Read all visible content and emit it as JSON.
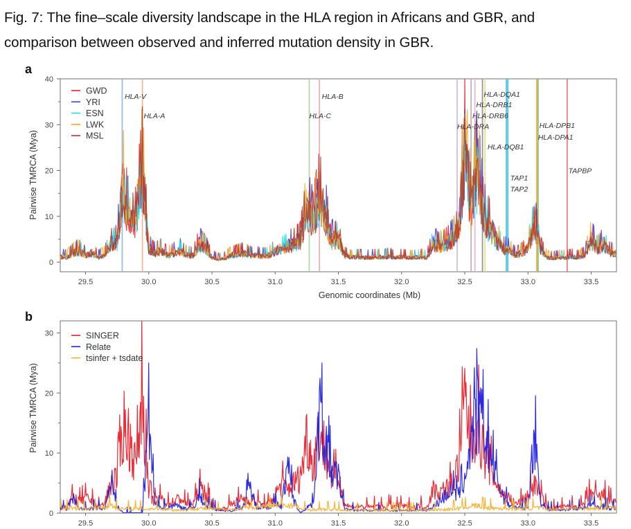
{
  "figure": {
    "title_line1": "Fig. 7: The fine–scale diversity landscape in the HLA region in Africans and GBR, and",
    "title_line2": "comparison between observed and inferred mutation density in GBR."
  },
  "chart_data": [
    {
      "panel": "a",
      "type": "line",
      "xlabel": "Genomic coordinates (Mb)",
      "ylabel": "Pairwise TMRCA (Mya)",
      "xlim": [
        29.3,
        33.7
      ],
      "ylim": [
        -2.1,
        40
      ],
      "xticks": [
        "29.5",
        "30.0",
        "30.5",
        "31.0",
        "31.5",
        "32.0",
        "32.5",
        "33.0",
        "33.5"
      ],
      "yticks": [
        "0",
        "10",
        "20",
        "30",
        "40"
      ],
      "legend_position": "top-left",
      "x_start": 29.3,
      "x_step": 0.05,
      "base_values": [
        1.2,
        1.0,
        2.0,
        2.5,
        1.5,
        2.0,
        1.0,
        1.5,
        4.0,
        4.5,
        17,
        8,
        10,
        21,
        3,
        2,
        2.5,
        1.5,
        2,
        2.5,
        1.5,
        1.5,
        4,
        3,
        1,
        0.6,
        0.8,
        1.5,
        1.8,
        2.0,
        1.5,
        1.5,
        1.3,
        1.5,
        2.5,
        3,
        3.5,
        4,
        5,
        12,
        9,
        15,
        10,
        5,
        5,
        1.5,
        1.0,
        1.2,
        1.0,
        1.0,
        1.2,
        1.0,
        1.3,
        1.0,
        1.2,
        1.0,
        1.0,
        1.2,
        1.0,
        4,
        3.5,
        4,
        5,
        7,
        25,
        12,
        20,
        10,
        8,
        5,
        3,
        2.5,
        1.5,
        2,
        3,
        9,
        3,
        1,
        0.8,
        1,
        1.0,
        1.2,
        1.0,
        1.5,
        5,
        3,
        4,
        2,
        2
      ],
      "series": [
        {
          "name": "GWD",
          "color": "#e8202a",
          "scale": 1.0
        },
        {
          "name": "YRI",
          "color": "#3a3ad0",
          "scale": 1.04
        },
        {
          "name": "ESN",
          "color": "#28e0e8",
          "scale": 0.95
        },
        {
          "name": "LWK",
          "color": "#f5a623",
          "scale": 1.02
        },
        {
          "name": "MSL",
          "color": "#b23a2e",
          "scale": 0.98
        }
      ],
      "genes": [
        {
          "name": "HLA-V",
          "pos": 29.79,
          "color": "#8fb8e0",
          "label_x": 29.81,
          "label_y": 36.2
        },
        {
          "name": "HLA-A",
          "pos": 29.95,
          "color": "#f3b08a",
          "label_x": 29.96,
          "label_y": 32
        },
        {
          "name": "HLA-C",
          "pos": 31.27,
          "color": "#a8d4a0",
          "label_x": 31.27,
          "label_y": 32
        },
        {
          "name": "HLA-B",
          "pos": 31.35,
          "color": "#f0a8a8",
          "label_x": 31.37,
          "label_y": 36.2
        },
        {
          "name": "HLA-DRA",
          "pos": 32.44,
          "color": "#c9b8e0",
          "label_x": 32.44,
          "label_y": 29.7
        },
        {
          "name": "HLA-DRB6",
          "pos": 32.55,
          "color": "#b0b0b0",
          "label_x": 32.56,
          "label_y": 32
        },
        {
          "name": "HLA-DRB1",
          "pos": 32.58,
          "color": "#e8b0d8",
          "label_x": 32.59,
          "label_y": 34.4
        },
        {
          "name": "HLA-DQA1",
          "pos": 32.64,
          "color": "#8a8a8a",
          "label_x": 32.65,
          "label_y": 36.7
        },
        {
          "name": "HLA-DQB1",
          "pos": 32.66,
          "color": "#e0e080",
          "label_x": 32.68,
          "label_y": 25.2
        },
        {
          "name": "TAP1",
          "pos": 32.83,
          "color": "#5cc8e0",
          "label_x": 32.86,
          "label_y": 18.4
        },
        {
          "name": "TAP2",
          "pos": 32.84,
          "color": "#5cc8e0",
          "label_x": 32.86,
          "label_y": 16
        },
        {
          "name": "HLA-DPB1",
          "pos": 33.07,
          "color": "#f0a040",
          "label_x": 33.09,
          "label_y": 29.9
        },
        {
          "name": "HLA-DPA1",
          "pos": 33.08,
          "color": "#7cc060",
          "label_x": 33.08,
          "label_y": 27.3
        },
        {
          "name": "TAPBP",
          "pos": 33.31,
          "color": "#e87070",
          "label_x": 33.32,
          "label_y": 20
        }
      ]
    },
    {
      "panel": "b",
      "type": "line",
      "xlabel": "",
      "ylabel": "Pairwise TMRCA (Mya)",
      "xlim": [
        29.3,
        33.7
      ],
      "ylim": [
        0,
        32
      ],
      "xticks": [
        "29.5",
        "30.0",
        "30.5",
        "31.0",
        "31.5",
        "32.0",
        "32.5",
        "33.0",
        "33.5"
      ],
      "yticks": [
        "0",
        "10",
        "20",
        "30"
      ],
      "legend_position": "top-left",
      "x_start": 29.3,
      "x_step": 0.05,
      "series": [
        {
          "name": "SINGER",
          "color": "#e8202a",
          "values": [
            1.0,
            1.2,
            2.5,
            2.0,
            2.5,
            2.0,
            1.0,
            1.5,
            5,
            6,
            15,
            12,
            8,
            21,
            3,
            2,
            2.5,
            1.5,
            2,
            2.5,
            1.5,
            1.5,
            4,
            3.5,
            1,
            0.6,
            0.8,
            1.5,
            2.0,
            2.5,
            2.0,
            2.0,
            1.3,
            1.5,
            3,
            5,
            4,
            5,
            6,
            13,
            8,
            14,
            10,
            6,
            6,
            1.5,
            1.0,
            1.2,
            1.0,
            1.0,
            1.2,
            1.0,
            1.3,
            1.0,
            1.2,
            1.0,
            1.0,
            1.2,
            1.0,
            4,
            3.5,
            4,
            5,
            8,
            19,
            12,
            16,
            10,
            8,
            5,
            3,
            2.5,
            1.5,
            2,
            3,
            5,
            3,
            1,
            0.8,
            1,
            1.0,
            1.2,
            1.0,
            1.5,
            3.5,
            2.5,
            3,
            2,
            2
          ]
        },
        {
          "name": "Relate",
          "color": "#2020e0",
          "values": [
            0.8,
            0.6,
            2.5,
            0.8,
            0.6,
            0.8,
            0.8,
            0.7,
            4.5,
            1.2,
            0,
            0,
            0,
            0,
            15,
            1.5,
            1.0,
            0.8,
            1.5,
            1.0,
            0.8,
            0.8,
            3,
            1.5,
            0.8,
            0.6,
            0.4,
            0.4,
            0.8,
            1.2,
            4.5,
            1.0,
            1.2,
            1.0,
            1.5,
            1.2,
            8,
            2,
            0,
            1.0,
            1.5,
            17,
            12,
            7,
            6,
            0.8,
            0.5,
            0.5,
            0.5,
            0.4,
            0.5,
            0.5,
            0.5,
            0.4,
            0.5,
            0.5,
            0.4,
            0.5,
            0.5,
            1.0,
            2,
            3,
            4,
            3,
            6,
            12,
            17,
            14,
            10,
            6,
            3,
            1.5,
            1.0,
            0.8,
            1.0,
            14,
            2,
            0.6,
            0.6,
            0.5,
            0.6,
            0.8,
            0.8,
            1.0,
            1.5,
            1.0,
            1.2,
            0.8,
            0.8
          ]
        },
        {
          "name": "tsinfer + tsdate",
          "color": "#f5b030",
          "values": [
            0.8,
            0.8,
            0.9,
            0.8,
            0.7,
            0.8,
            0.9,
            1.0,
            1.5,
            0.8,
            0.7,
            0.7,
            0.7,
            0.7,
            0.7,
            0.8,
            0.8,
            0.7,
            0.5,
            0.5,
            0.5,
            0.8,
            0.8,
            0.7,
            0.7,
            0.6,
            0.6,
            0.6,
            0.7,
            0.8,
            0.9,
            1.0,
            1.1,
            1.2,
            1.3,
            1.3,
            1.3,
            1.3,
            0.7,
            0.6,
            0.6,
            0.6,
            0.6,
            0.6,
            0.6,
            0.5,
            0.5,
            0.5,
            0.5,
            0.5,
            0.5,
            0.5,
            0.5,
            0.5,
            0.5,
            0.5,
            0.5,
            0.5,
            0.5,
            0.6,
            0.6,
            0.6,
            0.7,
            0.8,
            1.0,
            1.2,
            1.2,
            1.0,
            0.9,
            0.8,
            0.8,
            0.8,
            0.7,
            0.7,
            0.8,
            0.9,
            0.8,
            0.7,
            0.7,
            0.7,
            0.7,
            0.8,
            0.8,
            0.8,
            0.8,
            0.8,
            0.9,
            0.9,
            0.9
          ]
        }
      ]
    }
  ]
}
